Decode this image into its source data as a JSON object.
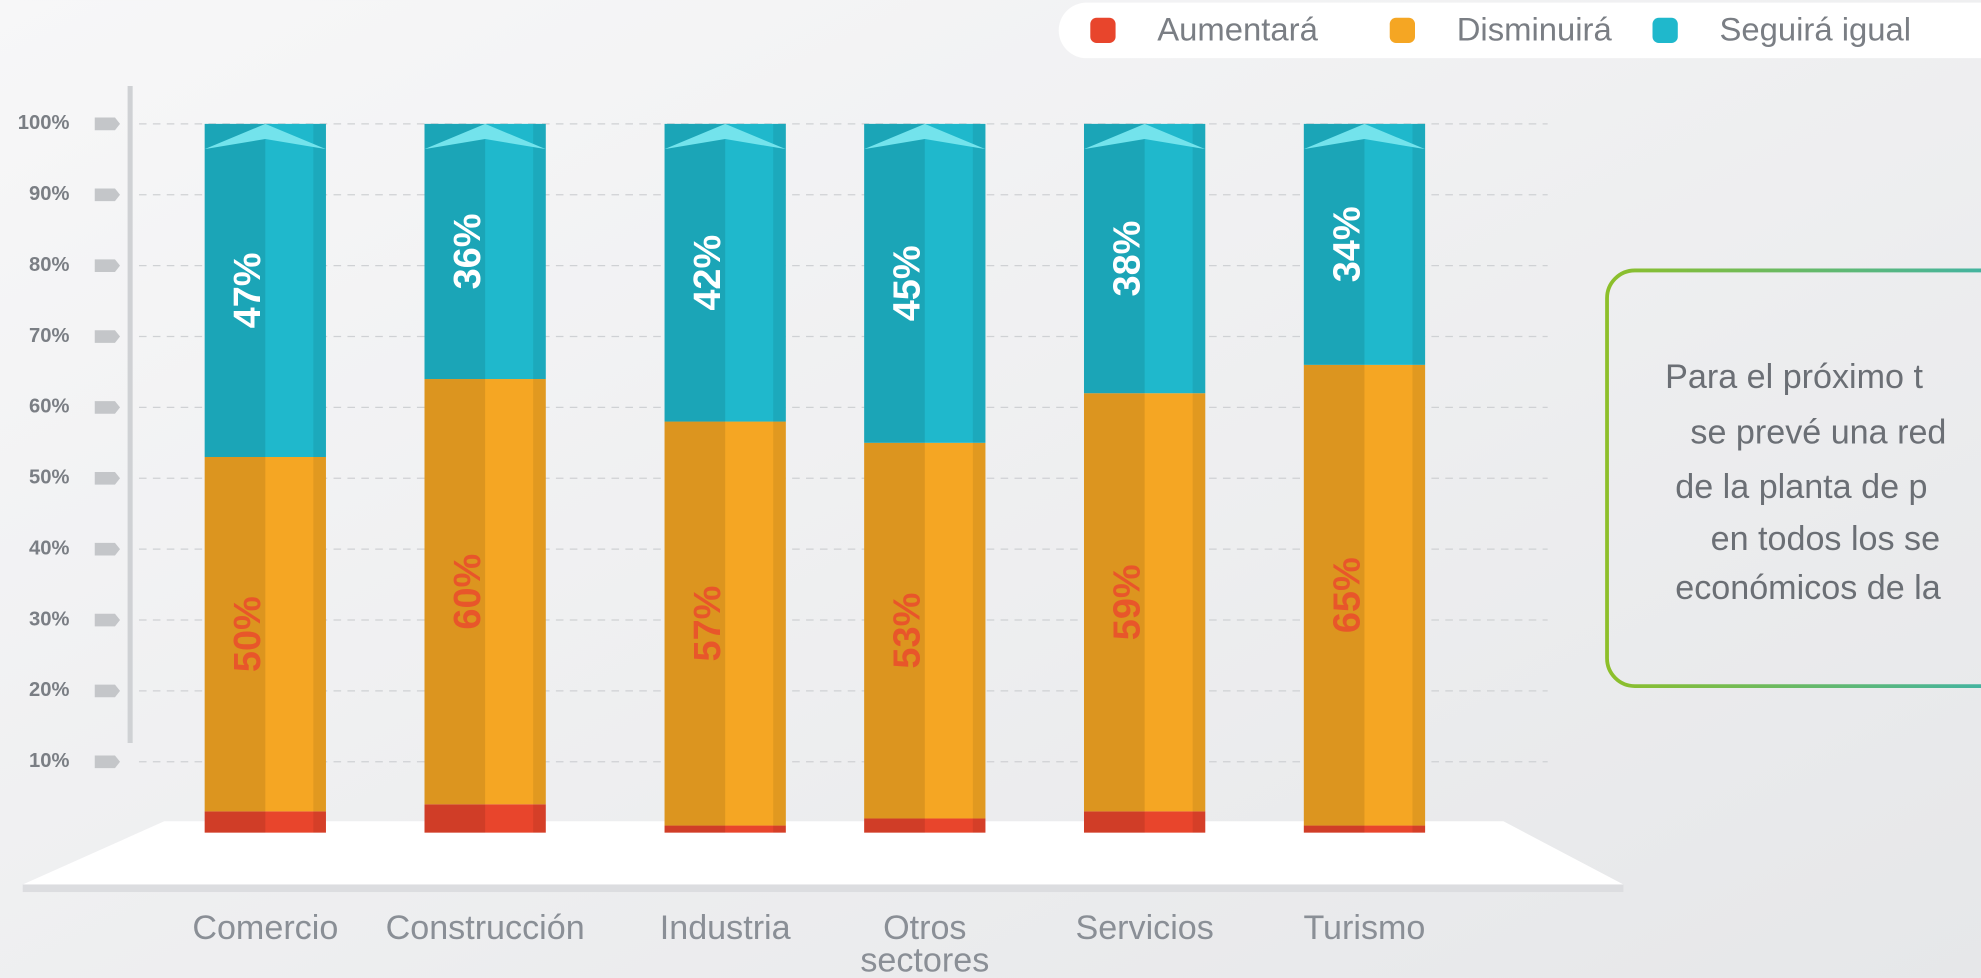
{
  "chart_data": {
    "type": "stacked_bar",
    "categories": [
      "Comercio",
      "Construcción",
      "Industria",
      "Otros sectores",
      "Servicios",
      "Turismo"
    ],
    "series": [
      {
        "name": "Aumentará",
        "color": "#e8452c",
        "values": [
          3,
          4,
          1,
          2,
          3,
          1
        ]
      },
      {
        "name": "Disminuirá",
        "color": "#f5a623",
        "values": [
          50,
          60,
          57,
          53,
          59,
          65
        ],
        "value_labels": [
          "50%",
          "60%",
          "57%",
          "53%",
          "59%",
          "65%"
        ]
      },
      {
        "name": "Seguirá igual",
        "color": "#1fb8cc",
        "values": [
          47,
          36,
          42,
          45,
          38,
          34
        ],
        "value_labels": [
          "47%",
          "36%",
          "42%",
          "45%",
          "38%",
          "34%"
        ]
      }
    ],
    "ylim": [
      0,
      100
    ],
    "yticks": [
      {
        "value": 10,
        "label": "10%"
      },
      {
        "value": 20,
        "label": "20%"
      },
      {
        "value": 30,
        "label": "30%"
      },
      {
        "value": 40,
        "label": "40%"
      },
      {
        "value": 50,
        "label": "50%"
      },
      {
        "value": 60,
        "label": "60%"
      },
      {
        "value": 70,
        "label": "70%"
      },
      {
        "value": 80,
        "label": "80%"
      },
      {
        "value": 90,
        "label": "90%"
      },
      {
        "value": 100,
        "label": "100%"
      }
    ],
    "grid": true,
    "legend": "top-right",
    "note": [
      "Para el próximo t",
      "se prevé una red",
      "de la planta de p",
      "en todos los se",
      "económicos de la"
    ]
  }
}
